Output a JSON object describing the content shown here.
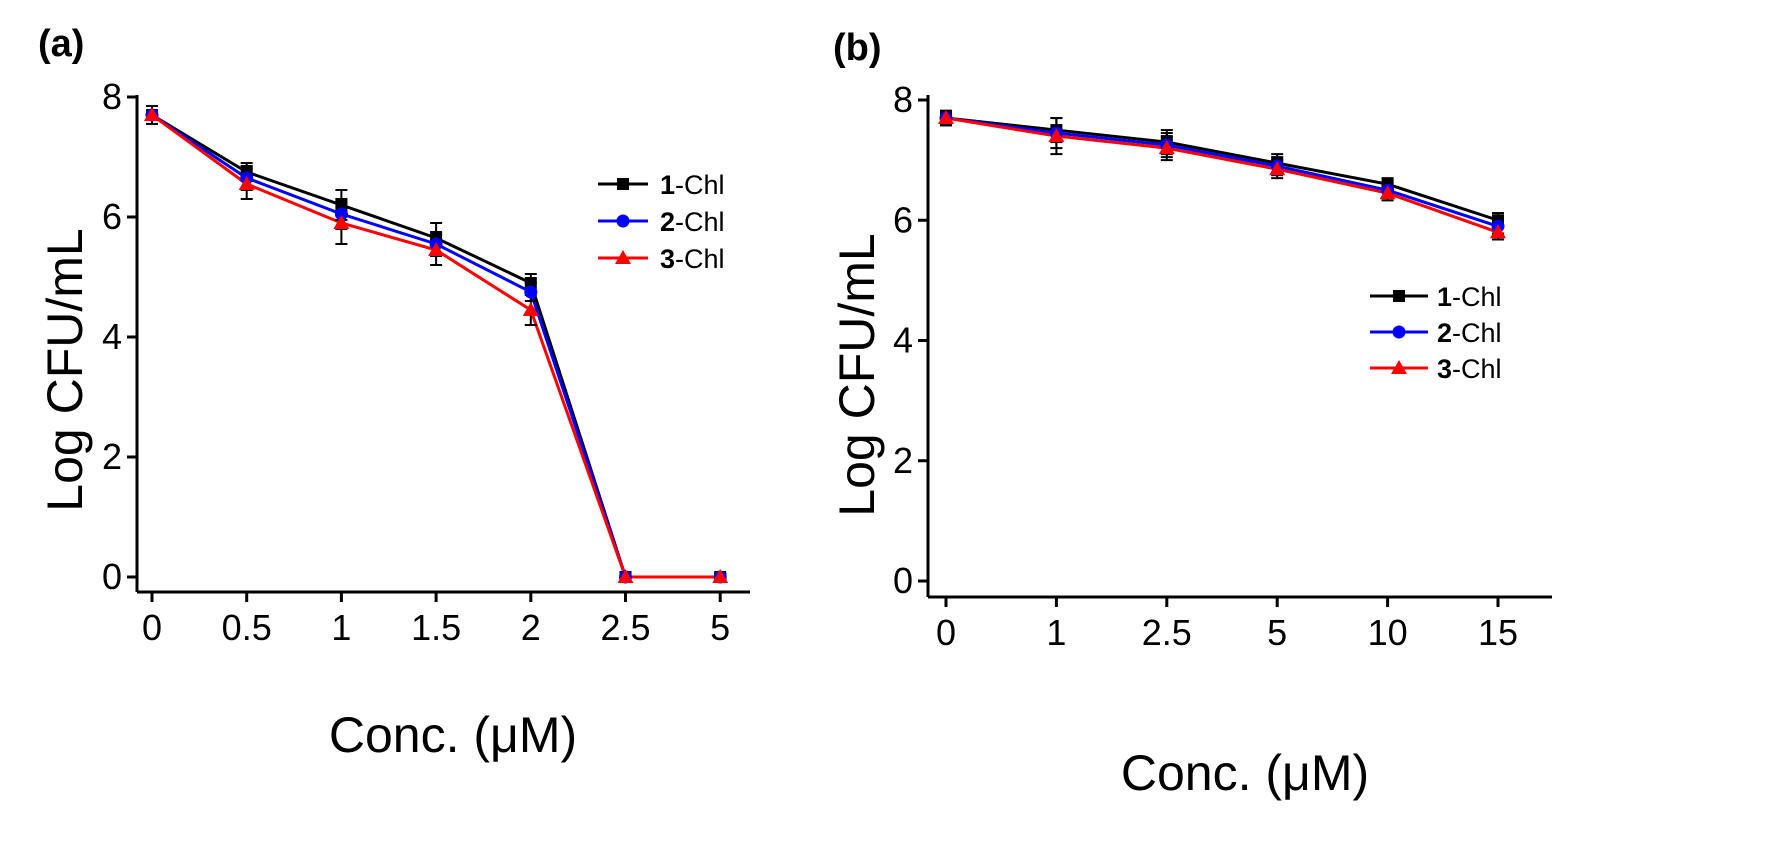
{
  "chart_data": [
    {
      "type": "line",
      "panel_label": "(a)",
      "xlabel": "Conc. (μM)",
      "ylabel": "Log CFU/mL",
      "categories": [
        "0",
        "0.5",
        "1",
        "1.5",
        "2",
        "2.5",
        "5"
      ],
      "ylim": [
        0,
        8
      ],
      "yticks": [
        "0",
        "2",
        "4",
        "6",
        "8"
      ],
      "legend_position": "upper-right",
      "series": [
        {
          "name": "1-Chl",
          "name_num": "1",
          "name_rest": "-Chl",
          "color": "#000000",
          "marker": "square",
          "values": [
            7.7,
            6.75,
            6.2,
            5.65,
            4.9,
            0.0,
            0.0
          ],
          "errors": [
            0.15,
            0.15,
            0.25,
            0.25,
            0.15,
            0.05,
            0.05
          ]
        },
        {
          "name": "2-Chl",
          "name_num": "2",
          "name_rest": "-Chl",
          "color": "#0000ff",
          "marker": "circle",
          "values": [
            7.7,
            6.65,
            6.05,
            5.55,
            4.75,
            0.0,
            0.0
          ],
          "errors": [
            0.15,
            0.2,
            0.25,
            0.2,
            0.15,
            0.05,
            0.05
          ]
        },
        {
          "name": "3-Chl",
          "name_num": "3",
          "name_rest": "-Chl",
          "color": "#ff0000",
          "marker": "triangle",
          "values": [
            7.7,
            6.55,
            5.9,
            5.45,
            4.45,
            0.0,
            0.0
          ],
          "errors": [
            0.15,
            0.25,
            0.35,
            0.25,
            0.25,
            0.05,
            0.05
          ]
        }
      ]
    },
    {
      "type": "line",
      "panel_label": "(b)",
      "xlabel": "Conc. (μM)",
      "ylabel": "Log CFU/mL",
      "categories": [
        "0",
        "1",
        "2.5",
        "5",
        "10",
        "15"
      ],
      "ylim": [
        0,
        8
      ],
      "yticks": [
        "0",
        "2",
        "4",
        "6",
        "8"
      ],
      "legend_position": "right",
      "series": [
        {
          "name": "1-Chl",
          "name_num": "1",
          "name_rest": "-Chl",
          "color": "#000000",
          "marker": "square",
          "values": [
            7.7,
            7.5,
            7.3,
            6.95,
            6.6,
            6.0
          ],
          "errors": [
            0.12,
            0.2,
            0.2,
            0.15,
            0.1,
            0.12
          ]
        },
        {
          "name": "2-Chl",
          "name_num": "2",
          "name_rest": "-Chl",
          "color": "#0000ff",
          "marker": "circle",
          "values": [
            7.7,
            7.45,
            7.25,
            6.9,
            6.5,
            5.9
          ],
          "errors": [
            0.12,
            0.25,
            0.2,
            0.15,
            0.12,
            0.12
          ]
        },
        {
          "name": "3-Chl",
          "name_num": "3",
          "name_rest": "-Chl",
          "color": "#ff0000",
          "marker": "triangle",
          "values": [
            7.7,
            7.4,
            7.2,
            6.85,
            6.45,
            5.8
          ],
          "errors": [
            0.12,
            0.3,
            0.2,
            0.15,
            0.12,
            0.12
          ]
        }
      ]
    }
  ]
}
